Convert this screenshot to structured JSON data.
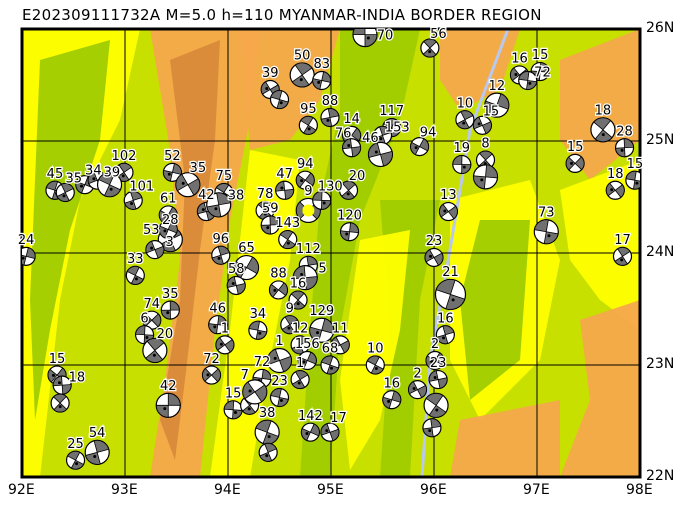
{
  "title": "E202309111732A M=5.0 h=110 MYANMAR-INDIA BORDER REGION",
  "map": {
    "lon_range": [
      92,
      98
    ],
    "lat_range": [
      22,
      26
    ],
    "lon_ticks": [
      "92E",
      "93E",
      "94E",
      "95E",
      "96E",
      "97E",
      "98E"
    ],
    "lat_ticks": [
      "26N",
      "25N",
      "24N",
      "23N",
      "22N"
    ],
    "colors": {
      "lowland": "#a0cc00",
      "mid": "#c8e000",
      "high": "#ffff00",
      "mountain": "#f5a84c",
      "peak": "#d98a3a",
      "river": "#b8c8f0",
      "compression": "#707070"
    },
    "epicenter": {
      "lon": 94.78,
      "lat": 24.38,
      "color": "#ffff00"
    },
    "mechanisms": [
      [
        95.33,
        25.95,
        "70"
      ],
      [
        95.96,
        25.83,
        "56"
      ],
      [
        97.03,
        25.62,
        "15"
      ],
      [
        96.83,
        25.59,
        "16"
      ],
      [
        96.91,
        25.54,
        "72"
      ],
      [
        94.72,
        25.59,
        "50"
      ],
      [
        94.91,
        25.54,
        "83"
      ],
      [
        94.41,
        25.46,
        "39"
      ],
      [
        94.5,
        25.37,
        ""
      ],
      [
        96.3,
        25.19,
        "10"
      ],
      [
        96.61,
        25.32,
        "12"
      ],
      [
        96.47,
        25.14,
        "15"
      ],
      [
        95.59,
        25.12,
        "117"
      ],
      [
        95.5,
        25.05,
        "153"
      ],
      [
        95.86,
        24.95,
        "94"
      ],
      [
        95.48,
        24.88,
        "46"
      ],
      [
        94.78,
        25.14,
        "95"
      ],
      [
        94.99,
        25.21,
        "88"
      ],
      [
        95.2,
        25.05,
        "14"
      ],
      [
        95.2,
        24.94,
        "76"
      ],
      [
        97.64,
        25.1,
        "18"
      ],
      [
        97.85,
        24.94,
        "28"
      ],
      [
        97.37,
        24.8,
        "15"
      ],
      [
        96.27,
        24.79,
        "19"
      ],
      [
        96.5,
        24.83,
        "8"
      ],
      [
        96.5,
        24.68,
        ""
      ],
      [
        97.76,
        24.56,
        "18"
      ],
      [
        97.95,
        24.65,
        "15"
      ],
      [
        92.99,
        24.72,
        "102"
      ],
      [
        93.46,
        24.72,
        "52"
      ],
      [
        93.61,
        24.61,
        "35"
      ],
      [
        92.32,
        24.56,
        "45"
      ],
      [
        92.42,
        24.54,
        "35"
      ],
      [
        92.61,
        24.61,
        "34"
      ],
      [
        92.73,
        24.65,
        "39"
      ],
      [
        92.85,
        24.61,
        ""
      ],
      [
        93.08,
        24.47,
        "101"
      ],
      [
        93.42,
        24.34,
        "61"
      ],
      [
        93.79,
        24.37,
        "42"
      ],
      [
        93.96,
        24.54,
        "75"
      ],
      [
        93.91,
        24.43,
        "38"
      ],
      [
        94.75,
        24.65,
        "94"
      ],
      [
        94.55,
        24.56,
        "47"
      ],
      [
        94.36,
        24.38,
        "78"
      ],
      [
        94.41,
        24.25,
        "59"
      ],
      [
        94.78,
        24.38,
        "9"
      ],
      [
        94.91,
        24.47,
        "130"
      ],
      [
        95.17,
        24.56,
        "20"
      ],
      [
        95.18,
        24.19,
        "120"
      ],
      [
        96.14,
        24.37,
        "13"
      ],
      [
        97.09,
        24.19,
        "73"
      ],
      [
        97.83,
        23.97,
        "17"
      ],
      [
        92.04,
        23.97,
        "24"
      ],
      [
        96.0,
        23.96,
        "23"
      ],
      [
        96.16,
        23.63,
        "21"
      ],
      [
        93.44,
        24.12,
        "28"
      ],
      [
        93.42,
        24.21,
        "53"
      ],
      [
        93.29,
        24.03,
        "3"
      ],
      [
        93.1,
        23.8,
        "33"
      ],
      [
        93.93,
        23.98,
        "96"
      ],
      [
        94.18,
        23.87,
        "65"
      ],
      [
        94.08,
        23.71,
        "58"
      ],
      [
        94.58,
        24.12,
        "143"
      ],
      [
        94.78,
        23.89,
        "112"
      ],
      [
        94.49,
        23.67,
        "88"
      ],
      [
        94.75,
        23.78,
        "5"
      ],
      [
        94.68,
        23.58,
        "16"
      ],
      [
        93.44,
        23.49,
        "35"
      ],
      [
        93.26,
        23.4,
        "74"
      ],
      [
        93.19,
        23.27,
        "6"
      ],
      [
        93.29,
        23.13,
        "20"
      ],
      [
        93.9,
        23.36,
        "46"
      ],
      [
        93.97,
        23.18,
        "1"
      ],
      [
        94.29,
        23.31,
        "34"
      ],
      [
        94.6,
        23.36,
        "9"
      ],
      [
        94.91,
        23.31,
        "129"
      ],
      [
        95.09,
        23.18,
        "11"
      ],
      [
        94.99,
        23.0,
        "68"
      ],
      [
        94.7,
        23.18,
        "12"
      ],
      [
        94.77,
        23.04,
        "156"
      ],
      [
        94.5,
        23.04,
        "1"
      ],
      [
        95.43,
        23.0,
        "10"
      ],
      [
        96.11,
        23.27,
        "16"
      ],
      [
        96.01,
        23.04,
        "2"
      ],
      [
        96.04,
        22.87,
        "23"
      ],
      [
        96.02,
        22.64,
        ""
      ],
      [
        95.98,
        22.44,
        ""
      ],
      [
        92.34,
        22.91,
        "15"
      ],
      [
        92.39,
        22.82,
        "18"
      ],
      [
        92.37,
        22.66,
        ""
      ],
      [
        93.42,
        22.64,
        "42"
      ],
      [
        93.84,
        22.91,
        "72"
      ],
      [
        94.05,
        22.6,
        "15"
      ],
      [
        94.21,
        22.64,
        ""
      ],
      [
        94.33,
        22.88,
        "72"
      ],
      [
        94.26,
        22.76,
        "7"
      ],
      [
        94.5,
        22.71,
        "23"
      ],
      [
        94.7,
        22.87,
        "1"
      ],
      [
        95.59,
        22.69,
        "16"
      ],
      [
        95.84,
        22.78,
        "2"
      ],
      [
        94.38,
        22.4,
        "38"
      ],
      [
        94.39,
        22.22,
        ""
      ],
      [
        94.8,
        22.4,
        "142"
      ],
      [
        94.99,
        22.4,
        "17"
      ],
      [
        92.52,
        22.15,
        "25"
      ],
      [
        92.73,
        22.22,
        "54"
      ]
    ]
  }
}
